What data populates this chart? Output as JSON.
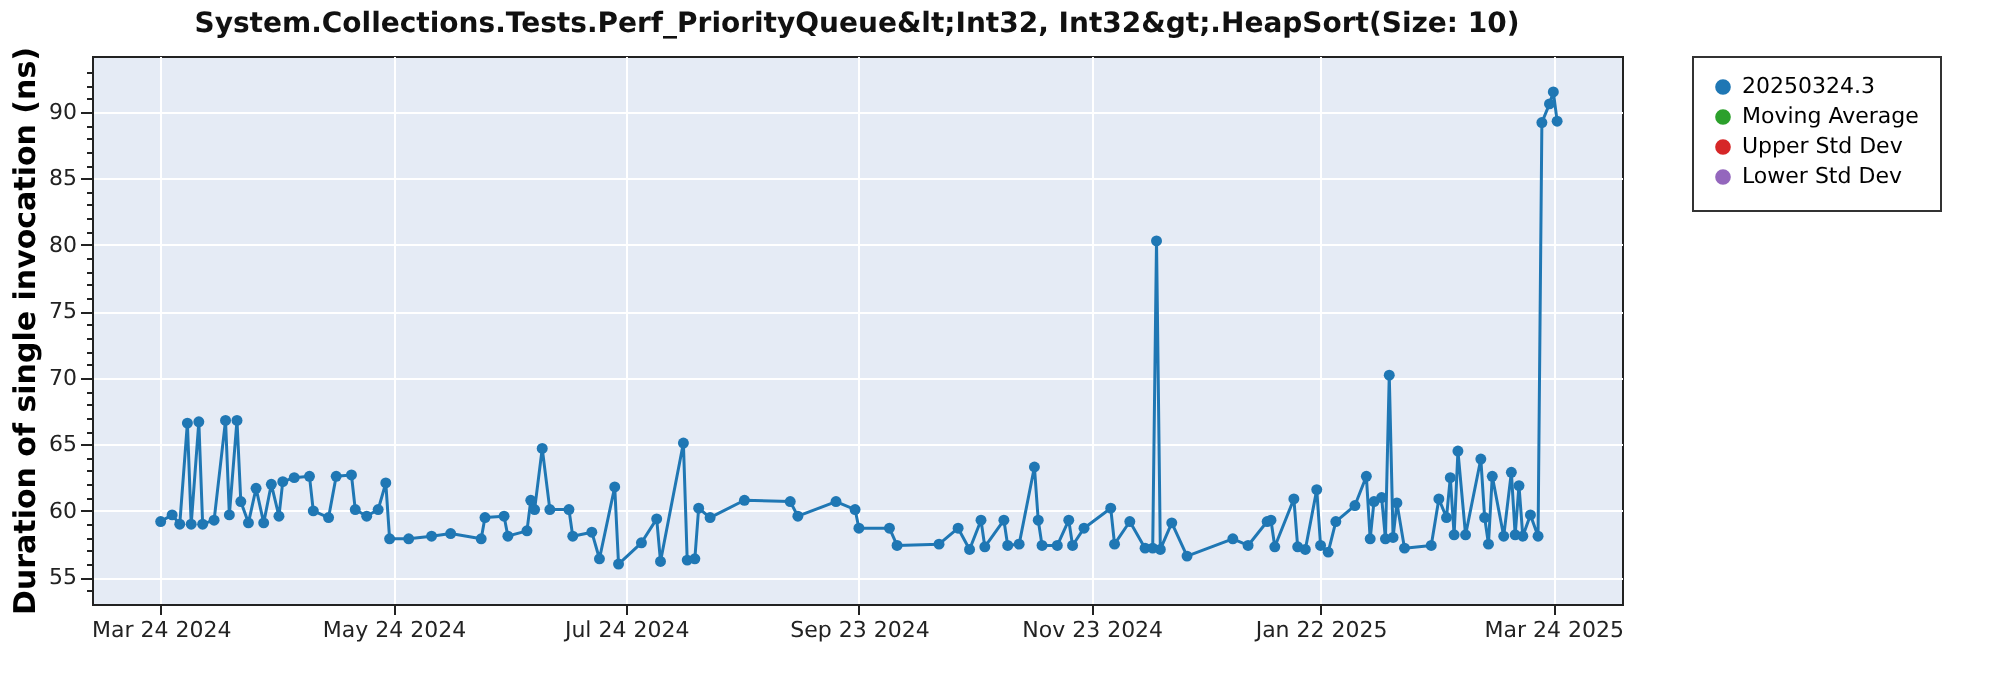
{
  "chart_data": {
    "type": "line",
    "title": "System.Collections.Tests.Perf_PriorityQueue&lt;Int32, Int32&gt;.HeapSort(Size: 10)",
    "ylabel": "Duration of single invocation (ns)",
    "xlim": [
      "2024-03-06",
      "2025-04-11"
    ],
    "xticks": [
      {
        "value": "2024-03-24",
        "label": "Mar 24 2024"
      },
      {
        "value": "2024-05-24",
        "label": "May 24 2024"
      },
      {
        "value": "2024-07-24",
        "label": "Jul 24 2024"
      },
      {
        "value": "2024-09-23",
        "label": "Sep 23 2024"
      },
      {
        "value": "2024-11-23",
        "label": "Nov 23 2024"
      },
      {
        "value": "2025-01-22",
        "label": "Jan 22 2025"
      },
      {
        "value": "2025-03-24",
        "label": "Mar 24 2025"
      }
    ],
    "ylim": [
      53,
      94.2
    ],
    "yticks": [
      {
        "value": 54,
        "label": null
      },
      55,
      {
        "value": 56,
        "label": null
      },
      {
        "value": 57,
        "label": null
      },
      {
        "value": 58,
        "label": null
      },
      {
        "value": 59,
        "label": null
      },
      60,
      {
        "value": 61,
        "label": null
      },
      {
        "value": 62,
        "label": null
      },
      {
        "value": 63,
        "label": null
      },
      {
        "value": 64,
        "label": null
      },
      65,
      {
        "value": 66,
        "label": null
      },
      {
        "value": 67,
        "label": null
      },
      {
        "value": 68,
        "label": null
      },
      {
        "value": 69,
        "label": null
      },
      70,
      {
        "value": 71,
        "label": null
      },
      {
        "value": 72,
        "label": null
      },
      {
        "value": 73,
        "label": null
      },
      {
        "value": 74,
        "label": null
      },
      75,
      {
        "value": 76,
        "label": null
      },
      {
        "value": 77,
        "label": null
      },
      {
        "value": 78,
        "label": null
      },
      {
        "value": 79,
        "label": null
      },
      80,
      {
        "value": 81,
        "label": null
      },
      {
        "value": 82,
        "label": null
      },
      {
        "value": 83,
        "label": null
      },
      {
        "value": 84,
        "label": null
      },
      85,
      {
        "value": 86,
        "label": null
      },
      {
        "value": 87,
        "label": null
      },
      {
        "value": 88,
        "label": null
      },
      {
        "value": 89,
        "label": null
      },
      90,
      {
        "value": 91,
        "label": null
      },
      {
        "value": 92,
        "label": null
      },
      {
        "value": 93,
        "label": null
      }
    ],
    "grid": true,
    "legend": "right",
    "marker": "circle",
    "line_style": "solid",
    "series": [
      {
        "name": "20250324.3",
        "color": "#1f77b4",
        "x": [
          "2024-03-24",
          "2024-03-27",
          "2024-03-29",
          "2024-03-31",
          "2024-04-01",
          "2024-04-03",
          "2024-04-04",
          "2024-04-07",
          "2024-04-10",
          "2024-04-11",
          "2024-04-13",
          "2024-04-14",
          "2024-04-16",
          "2024-04-18",
          "2024-04-20",
          "2024-04-22",
          "2024-04-24",
          "2024-04-25",
          "2024-04-28",
          "2024-05-02",
          "2024-05-03",
          "2024-05-07",
          "2024-05-09",
          "2024-05-13",
          "2024-05-14",
          "2024-05-17",
          "2024-05-20",
          "2024-05-22",
          "2024-05-23",
          "2024-05-28",
          "2024-06-03",
          "2024-06-08",
          "2024-06-16",
          "2024-06-17",
          "2024-06-22",
          "2024-06-23",
          "2024-06-28",
          "2024-06-29",
          "2024-06-30",
          "2024-07-02",
          "2024-07-04",
          "2024-07-09",
          "2024-07-10",
          "2024-07-15",
          "2024-07-17",
          "2024-07-21",
          "2024-07-22",
          "2024-07-28",
          "2024-08-01",
          "2024-08-02",
          "2024-08-08",
          "2024-08-09",
          "2024-08-11",
          "2024-08-12",
          "2024-08-15",
          "2024-08-24",
          "2024-09-05",
          "2024-09-07",
          "2024-09-17",
          "2024-09-22",
          "2024-09-23",
          "2024-10-01",
          "2024-10-03",
          "2024-10-14",
          "2024-10-19",
          "2024-10-22",
          "2024-10-25",
          "2024-10-26",
          "2024-10-31",
          "2024-11-01",
          "2024-11-04",
          "2024-11-08",
          "2024-11-09",
          "2024-11-10",
          "2024-11-14",
          "2024-11-17",
          "2024-11-18",
          "2024-11-21",
          "2024-11-28",
          "2024-11-29",
          "2024-12-03",
          "2024-12-07",
          "2024-12-09",
          "2024-12-10",
          "2024-12-11",
          "2024-12-14",
          "2024-12-18",
          "2024-12-30",
          "2025-01-03",
          "2025-01-08",
          "2025-01-09",
          "2025-01-10",
          "2025-01-15",
          "2025-01-16",
          "2025-01-18",
          "2025-01-21",
          "2025-01-22",
          "2025-01-24",
          "2025-01-26",
          "2025-01-31",
          "2025-02-03",
          "2025-02-04",
          "2025-02-05",
          "2025-02-07",
          "2025-02-08",
          "2025-02-09",
          "2025-02-10",
          "2025-02-11",
          "2025-02-13",
          "2025-02-20",
          "2025-02-22",
          "2025-02-24",
          "2025-02-25",
          "2025-02-26",
          "2025-02-27",
          "2025-03-01",
          "2025-03-05",
          "2025-03-06",
          "2025-03-07",
          "2025-03-08",
          "2025-03-11",
          "2025-03-13",
          "2025-03-14",
          "2025-03-15",
          "2025-03-16",
          "2025-03-18",
          "2025-03-20",
          "2025-03-21",
          "2025-03-23",
          "2025-03-24",
          "2025-03-25"
        ],
        "values": [
          59.2,
          59.7,
          59.0,
          66.6,
          59.0,
          66.7,
          59.0,
          59.3,
          66.8,
          59.7,
          66.8,
          60.7,
          59.1,
          61.7,
          59.1,
          62.0,
          59.6,
          62.2,
          62.5,
          62.6,
          60.0,
          59.5,
          62.6,
          62.7,
          60.1,
          59.6,
          60.1,
          62.1,
          57.9,
          57.9,
          58.1,
          58.3,
          57.9,
          59.5,
          59.6,
          58.1,
          58.5,
          60.8,
          60.1,
          64.7,
          60.1,
          60.1,
          58.1,
          58.4,
          56.4,
          61.8,
          56.0,
          57.6,
          59.4,
          56.2,
          65.1,
          56.3,
          56.4,
          60.2,
          59.5,
          60.8,
          60.7,
          59.6,
          60.7,
          60.1,
          58.7,
          58.7,
          57.4,
          57.5,
          58.7,
          57.1,
          59.3,
          57.3,
          59.3,
          57.4,
          57.5,
          63.3,
          59.3,
          57.4,
          57.4,
          59.3,
          57.4,
          58.7,
          60.2,
          57.5,
          59.2,
          57.2,
          57.2,
          80.3,
          57.1,
          59.1,
          56.6,
          57.9,
          57.4,
          59.2,
          59.3,
          57.3,
          60.9,
          57.3,
          57.1,
          61.6,
          57.4,
          56.9,
          59.2,
          60.4,
          62.6,
          57.9,
          60.7,
          61.0,
          57.9,
          70.2,
          58.0,
          60.6,
          57.2,
          57.4,
          60.9,
          59.5,
          62.5,
          58.2,
          64.5,
          58.2,
          63.9,
          59.5,
          57.5,
          62.6,
          58.1,
          62.9,
          58.2,
          61.9,
          58.1,
          59.7,
          58.1,
          89.2,
          90.6,
          91.5,
          89.3
        ]
      },
      {
        "name": "Moving Average",
        "color": "#2ca02c"
      },
      {
        "name": "Upper Std Dev",
        "color": "#d62728"
      },
      {
        "name": "Lower Std Dev",
        "color": "#9467bd"
      }
    ]
  }
}
